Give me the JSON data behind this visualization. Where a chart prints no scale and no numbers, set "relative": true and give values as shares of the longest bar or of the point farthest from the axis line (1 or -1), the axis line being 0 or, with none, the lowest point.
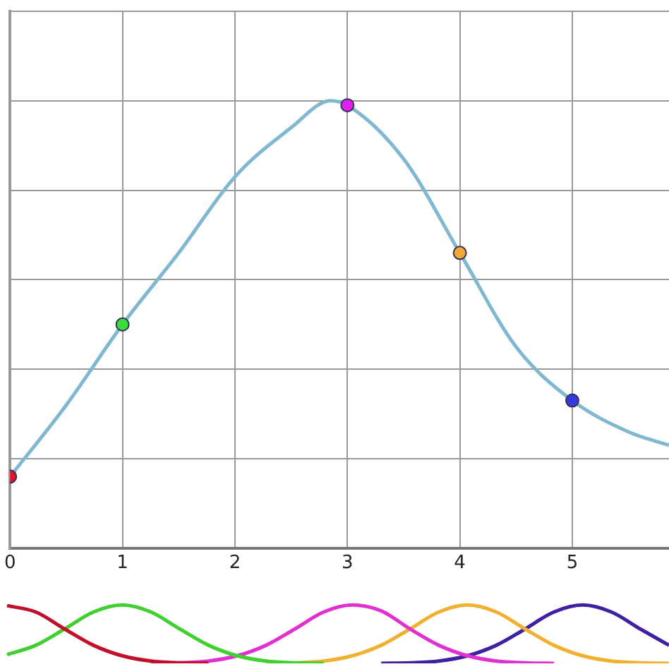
{
  "chart_data": [
    {
      "type": "line",
      "relative": true,
      "grid": true,
      "xlim": [
        0,
        5.86
      ],
      "xticks": [
        0,
        1,
        2,
        3,
        4,
        5
      ],
      "tick_labels": "x",
      "marker": "none",
      "line_style": "solid",
      "series": [
        {
          "color": "#7fb8d0",
          "x": [
            0,
            0.5,
            1,
            1.5,
            2,
            2.5,
            2.85,
            3,
            3.5,
            4,
            4.5,
            5,
            5.5,
            5.86
          ],
          "values": [
            0.16,
            0.32,
            0.5,
            0.66,
            0.83,
            0.94,
            1,
            0.99,
            0.87,
            0.66,
            0.45,
            0.33,
            0.26,
            0.23
          ]
        },
        {
          "type": "scatter",
          "marker": "circle",
          "x": [
            0,
            1,
            3,
            4,
            5
          ],
          "values": [
            0.16,
            0.5,
            0.99,
            0.66,
            0.33
          ],
          "colors": [
            "#e8102a",
            "#3ddc3d",
            "#e020f0",
            "#f0a838",
            "#3838e0"
          ]
        }
      ]
    },
    {
      "type": "line",
      "relative": true,
      "grid": false,
      "tick_labels": false,
      "marker": "none",
      "categories": [
        null,
        null,
        null,
        null,
        null,
        null,
        null,
        null,
        null,
        null,
        null,
        null,
        null,
        null,
        null,
        null,
        null,
        null,
        null,
        null,
        null,
        null,
        null,
        null
      ],
      "series": [
        {
          "color": "#c0102a",
          "values": [
            0.99,
            0.88,
            0.59,
            0.31,
            0.13,
            0.04,
            0.01,
            0,
            null,
            null,
            null,
            null,
            null,
            null,
            null,
            null,
            null,
            null,
            null,
            null,
            null,
            null,
            null,
            null
          ]
        },
        {
          "color": "#40d030",
          "values": [
            0.15,
            0.31,
            0.59,
            0.88,
            1,
            0.88,
            0.59,
            0.31,
            0.13,
            0.04,
            0.01,
            0,
            null,
            null,
            null,
            null,
            null,
            null,
            null,
            null,
            null,
            null,
            null,
            null
          ]
        },
        {
          "color": "#e030d0",
          "values": [
            null,
            null,
            null,
            null,
            null,
            0,
            0.01,
            0.04,
            0.13,
            0.31,
            0.59,
            0.88,
            1,
            0.9,
            0.59,
            0.31,
            0.13,
            0.04,
            0.01,
            0,
            null,
            null,
            null,
            null
          ]
        },
        {
          "color": "#f0b030",
          "values": [
            null,
            null,
            null,
            null,
            null,
            null,
            null,
            null,
            null,
            0,
            0.01,
            0.04,
            0.13,
            0.31,
            0.59,
            0.88,
            1,
            0.88,
            0.59,
            0.31,
            0.13,
            0.04,
            0.01,
            0
          ]
        },
        {
          "color": "#4020a0",
          "values": [
            null,
            null,
            null,
            null,
            null,
            null,
            null,
            null,
            null,
            null,
            null,
            null,
            null,
            0,
            0.01,
            0.04,
            0.13,
            0.31,
            0.59,
            0.88,
            1,
            0.88,
            0.59,
            0.31
          ]
        }
      ]
    }
  ]
}
